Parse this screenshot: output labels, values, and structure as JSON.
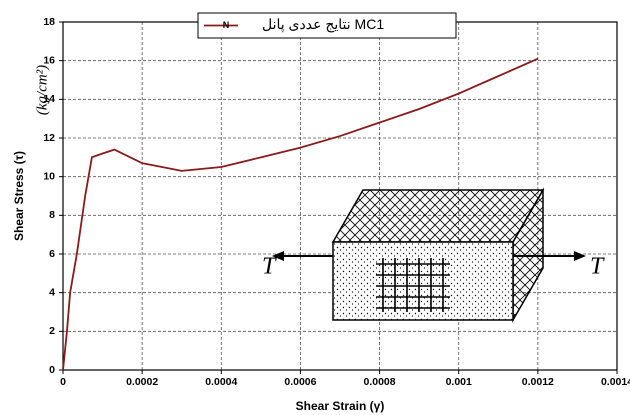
{
  "chart_data": {
    "type": "line",
    "y_label": "Shear Stress (τ)",
    "y_unit": "(kg/cm²)",
    "x_label": "Shear Strain (γ)",
    "xlim": [
      0,
      0.0014
    ],
    "xticks": [
      0,
      0.0002,
      0.0004,
      0.0006,
      0.0008,
      0.001,
      0.0012,
      0.0014
    ],
    "ylim": [
      0,
      18
    ],
    "yticks": [
      0,
      2,
      4,
      6,
      8,
      10,
      12,
      14,
      16,
      18
    ],
    "grid": true,
    "legend": "top",
    "series": [
      {
        "name": "نتایج عددی پانل MC1",
        "marker": "N",
        "color": "#8b1a1a",
        "x": [
          0,
          1e-05,
          1.8e-05,
          3.5e-05,
          5.6e-05,
          7.3e-05,
          0.0001,
          0.00013,
          0.00016,
          0.0002,
          0.0003,
          0.0004,
          0.0005,
          0.0006,
          0.0007,
          0.0008,
          0.0009,
          0.001,
          0.0011,
          0.0012
        ],
        "values": [
          0,
          2,
          4,
          6,
          9,
          11,
          11.2,
          11.4,
          11.1,
          10.7,
          10.3,
          10.5,
          11,
          11.5,
          12.1,
          12.8,
          13.5,
          14.3,
          15.2,
          16.1
        ]
      }
    ],
    "annotations": [
      "T",
      "T"
    ]
  }
}
